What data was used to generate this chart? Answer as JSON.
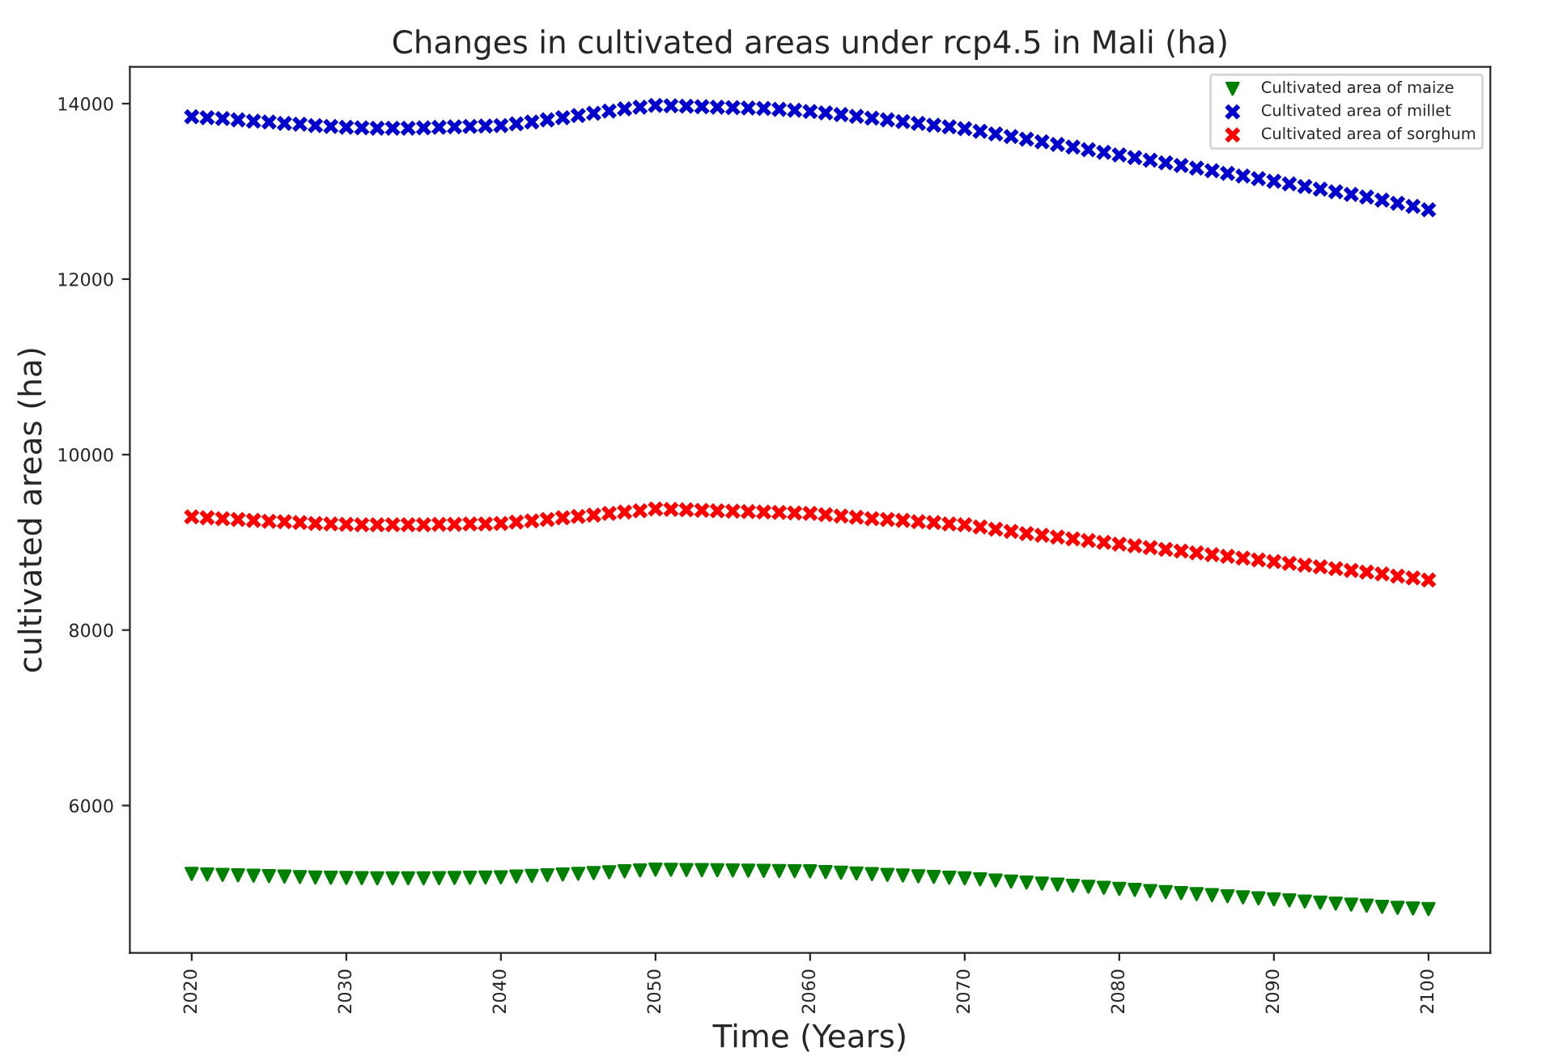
{
  "chart_data": {
    "type": "scatter",
    "title": "Changes in cultivated areas under rcp4.5 in Mali (ha)",
    "xlabel": "Time (Years)",
    "ylabel": "cultivated areas (ha)",
    "x": [
      2020,
      2021,
      2022,
      2023,
      2024,
      2025,
      2026,
      2027,
      2028,
      2029,
      2030,
      2031,
      2032,
      2033,
      2034,
      2035,
      2036,
      2037,
      2038,
      2039,
      2040,
      2041,
      2042,
      2043,
      2044,
      2045,
      2046,
      2047,
      2048,
      2049,
      2050,
      2051,
      2052,
      2053,
      2054,
      2055,
      2056,
      2057,
      2058,
      2059,
      2060,
      2061,
      2062,
      2063,
      2064,
      2065,
      2066,
      2067,
      2068,
      2069,
      2070,
      2071,
      2072,
      2073,
      2074,
      2075,
      2076,
      2077,
      2078,
      2079,
      2080,
      2081,
      2082,
      2083,
      2084,
      2085,
      2086,
      2087,
      2088,
      2089,
      2090,
      2091,
      2092,
      2093,
      2094,
      2095,
      2096,
      2097,
      2098,
      2099,
      2100
    ],
    "series": [
      {
        "name": "Cultivated area of maize",
        "color": "#008000",
        "marker": "triangle",
        "values": [
          5220,
          5215,
          5210,
          5205,
          5200,
          5195,
          5190,
          5185,
          5180,
          5178,
          5175,
          5172,
          5170,
          5170,
          5170,
          5170,
          5172,
          5175,
          5178,
          5180,
          5182,
          5190,
          5198,
          5206,
          5214,
          5222,
          5230,
          5240,
          5250,
          5260,
          5270,
          5268,
          5266,
          5264,
          5262,
          5260,
          5258,
          5256,
          5254,
          5252,
          5250,
          5242,
          5234,
          5226,
          5218,
          5210,
          5202,
          5194,
          5186,
          5178,
          5170,
          5158,
          5146,
          5134,
          5122,
          5110,
          5098,
          5086,
          5074,
          5062,
          5050,
          5038,
          5026,
          5014,
          5002,
          4990,
          4978,
          4966,
          4954,
          4942,
          4930,
          4918,
          4906,
          4894,
          4882,
          4870,
          4858,
          4846,
          4834,
          4826,
          4820
        ]
      },
      {
        "name": "Cultivated area of millet",
        "color": "#0000cd",
        "marker": "cross",
        "values": [
          13850,
          13840,
          13830,
          13815,
          13800,
          13790,
          13775,
          13765,
          13750,
          13740,
          13730,
          13725,
          13720,
          13720,
          13720,
          13725,
          13730,
          13735,
          13740,
          13745,
          13750,
          13770,
          13790,
          13815,
          13840,
          13865,
          13890,
          13915,
          13940,
          13960,
          13980,
          13975,
          13970,
          13965,
          13960,
          13955,
          13950,
          13945,
          13935,
          13925,
          13910,
          13895,
          13875,
          13855,
          13835,
          13815,
          13795,
          13775,
          13755,
          13735,
          13715,
          13685,
          13655,
          13625,
          13595,
          13565,
          13535,
          13505,
          13475,
          13445,
          13415,
          13385,
          13355,
          13325,
          13295,
          13265,
          13235,
          13205,
          13175,
          13145,
          13115,
          13085,
          13055,
          13025,
          12995,
          12965,
          12935,
          12900,
          12865,
          12830,
          12790
        ]
      },
      {
        "name": "Cultivated area of sorghum",
        "color": "#ff0000",
        "marker": "cross",
        "values": [
          9290,
          9280,
          9270,
          9260,
          9250,
          9240,
          9235,
          9225,
          9215,
          9210,
          9205,
          9200,
          9200,
          9200,
          9200,
          9200,
          9205,
          9205,
          9210,
          9210,
          9215,
          9230,
          9245,
          9260,
          9280,
          9295,
          9310,
          9330,
          9345,
          9360,
          9380,
          9375,
          9370,
          9365,
          9360,
          9355,
          9350,
          9345,
          9340,
          9335,
          9330,
          9315,
          9300,
          9285,
          9270,
          9260,
          9250,
          9235,
          9225,
          9210,
          9200,
          9175,
          9150,
          9125,
          9100,
          9080,
          9060,
          9040,
          9020,
          9000,
          8980,
          8960,
          8940,
          8920,
          8900,
          8880,
          8860,
          8840,
          8820,
          8800,
          8780,
          8760,
          8740,
          8720,
          8700,
          8680,
          8660,
          8640,
          8615,
          8595,
          8570
        ]
      }
    ],
    "xlim": [
      2016,
      2104
    ],
    "ylim": [
      4320,
      14420
    ],
    "xticks": [
      2020,
      2030,
      2040,
      2050,
      2060,
      2070,
      2080,
      2090,
      2100
    ],
    "yticks": [
      6000,
      8000,
      10000,
      12000,
      14000
    ],
    "grid": false,
    "legend": "top right"
  }
}
